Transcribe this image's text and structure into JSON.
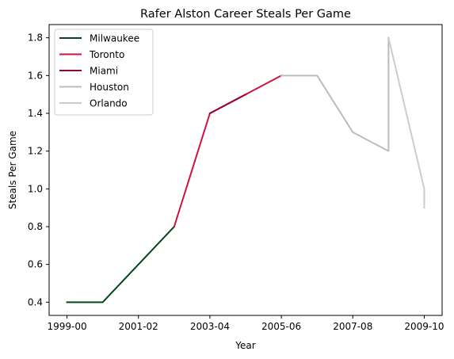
{
  "chart_data": {
    "type": "line",
    "title": "Rafer Alston Career Steals Per Game",
    "xlabel": "Year",
    "ylabel": "Steals Per Game",
    "x_tick_labels": [
      "1999-00",
      "2001-02",
      "2003-04",
      "2005-06",
      "2007-08",
      "2009-10"
    ],
    "x_tick_positions": [
      0,
      2,
      4,
      6,
      8,
      10
    ],
    "xlim": [
      -0.5,
      10.5
    ],
    "ylim": [
      0.33,
      1.87
    ],
    "y_ticks": [
      0.4,
      0.6,
      0.8,
      1.0,
      1.2,
      1.4,
      1.6,
      1.8
    ],
    "y_tick_labels": [
      "0.4",
      "0.6",
      "0.8",
      "1.0",
      "1.2",
      "1.4",
      "1.6",
      "1.8"
    ],
    "grid": false,
    "legend_position": "top-left",
    "series": [
      {
        "name": "Milwaukee",
        "color": "#00471b",
        "points": [
          [
            0,
            0.4
          ],
          [
            1,
            0.4
          ],
          [
            3,
            0.8
          ]
        ]
      },
      {
        "name": "Toronto",
        "color": "#ce1141",
        "points": [
          [
            3,
            0.8
          ],
          [
            4,
            1.4
          ],
          [
            6,
            1.6
          ]
        ]
      },
      {
        "name": "Miami",
        "color": "#98002e",
        "points": [
          [
            4,
            1.4
          ],
          [
            5,
            1.5
          ]
        ]
      },
      {
        "name": "Houston",
        "color": "#bcbcbc",
        "points": [
          [
            6,
            1.6
          ],
          [
            7,
            1.6
          ],
          [
            8,
            1.3
          ],
          [
            9,
            1.2
          ],
          [
            9,
            1.8
          ]
        ]
      },
      {
        "name": "Orlando",
        "color": "#c4ced4",
        "points": [
          [
            9,
            1.8
          ],
          [
            10,
            1.0
          ],
          [
            10,
            0.9
          ]
        ]
      }
    ]
  }
}
